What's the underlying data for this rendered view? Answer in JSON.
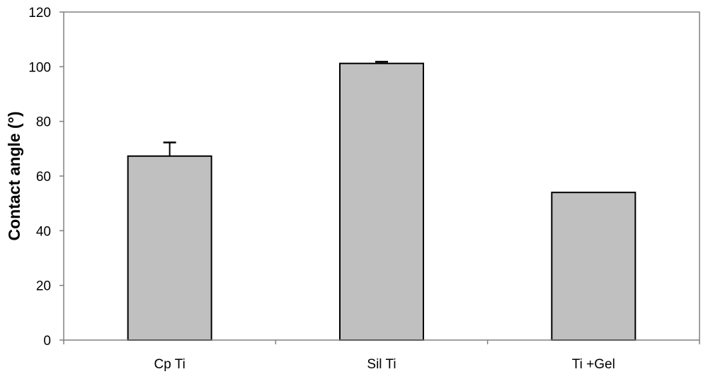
{
  "chart_data": {
    "type": "bar",
    "title": "",
    "xlabel": "",
    "ylabel": "Contact angle (°)",
    "categories": [
      "Cp Ti",
      "Sil Ti",
      "Ti +Gel"
    ],
    "values": [
      67.3,
      101.2,
      54.0
    ],
    "error_plus": [
      5.0,
      0.6,
      0.0
    ],
    "ylim": [
      0,
      120
    ],
    "yticks": [
      "0",
      "20",
      "40",
      "60",
      "80",
      "100",
      "120"
    ],
    "ytick_values": [
      0,
      20,
      40,
      60,
      80,
      100,
      120
    ],
    "grid": false,
    "legend": "none",
    "colors": {
      "bar_fill": "#c0c0c0",
      "bar_stroke": "#000000",
      "axis": "#808080",
      "text": "#000000"
    }
  }
}
